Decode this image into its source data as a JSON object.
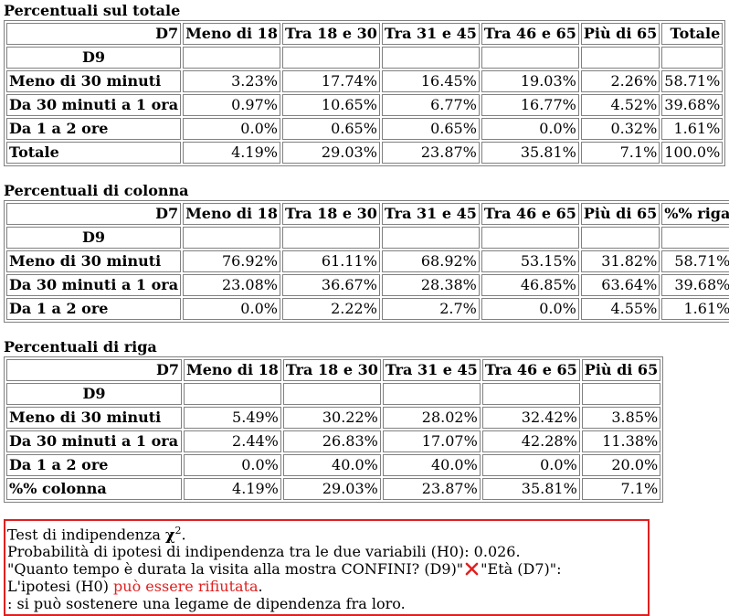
{
  "columns": [
    "D7",
    "Meno di 18",
    "Tra 18 e 30",
    "Tra 31 e 45",
    "Tra 46 e 65",
    "Più di 65"
  ],
  "row_var_label": "D9",
  "row_labels": [
    "Meno di 30 minuti",
    "Da 30 minuti a 1 ora",
    "Da 1 a 2 ore"
  ],
  "sections": {
    "total": {
      "title": "Percentuali sul totale",
      "extra_col": "Totale",
      "rows": [
        [
          "3.23%",
          "17.74%",
          "16.45%",
          "19.03%",
          "2.26%",
          "58.71%"
        ],
        [
          "0.97%",
          "10.65%",
          "6.77%",
          "16.77%",
          "4.52%",
          "39.68%"
        ],
        [
          "0.0%",
          "0.65%",
          "0.65%",
          "0.0%",
          "0.32%",
          "1.61%"
        ]
      ],
      "footer_label": "Totale",
      "footer": [
        "4.19%",
        "29.03%",
        "23.87%",
        "35.81%",
        "7.1%",
        "100.0%"
      ]
    },
    "column": {
      "title": "Percentuali di colonna",
      "extra_col": "%% riga",
      "rows": [
        [
          "76.92%",
          "61.11%",
          "68.92%",
          "53.15%",
          "31.82%",
          "58.71%"
        ],
        [
          "23.08%",
          "36.67%",
          "28.38%",
          "46.85%",
          "63.64%",
          "39.68%"
        ],
        [
          "0.0%",
          "2.22%",
          "2.7%",
          "0.0%",
          "4.55%",
          "1.61%"
        ]
      ]
    },
    "row": {
      "title": "Percentuali di riga",
      "rows": [
        [
          "5.49%",
          "30.22%",
          "28.02%",
          "32.42%",
          "3.85%"
        ],
        [
          "2.44%",
          "26.83%",
          "17.07%",
          "42.28%",
          "11.38%"
        ],
        [
          "0.0%",
          "40.0%",
          "40.0%",
          "0.0%",
          "20.0%"
        ]
      ],
      "footer_label": "%% colonna",
      "footer": [
        "4.19%",
        "29.03%",
        "23.87%",
        "35.81%",
        "7.1%"
      ]
    }
  },
  "chi_test": {
    "line1": "Test di indipendenza ",
    "chi_symbol": "χ",
    "chi_sup": "2",
    "line1_end": ".",
    "line2": "Probabilità di ipotesi di indipendenza tra le due variabili (H0): 0.026.",
    "line3_a": "\"Quanto tempo è durata la visita alla mostra CONFINI? (D9)\"",
    "line3_b": "\"Età (D7)\":",
    "line4_a": "L'ipotesi (H0) ",
    "line4_red": "può essere rifiutata",
    "line4_end": ".",
    "line5": ": si può sostenere una legame de dipendenza fra loro.",
    "accent_color": "#e02020"
  }
}
